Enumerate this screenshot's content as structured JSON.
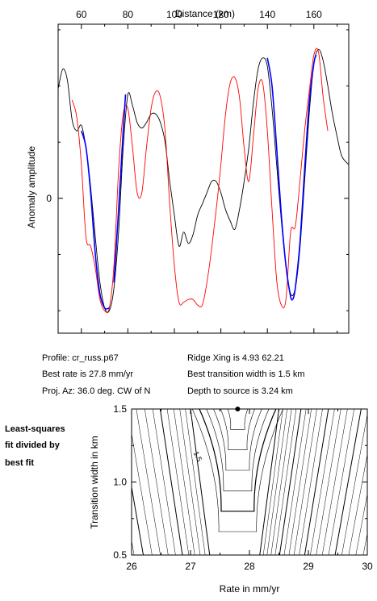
{
  "chart_data": [
    {
      "type": "line",
      "title": "",
      "xlabel": "Distance (km)",
      "ylabel": "Anomaly amplitude",
      "xlim": [
        50,
        175
      ],
      "ylim": [
        -2.4,
        3.1
      ],
      "x_ticks": [
        60,
        80,
        100,
        120,
        140,
        160
      ],
      "y_ticks": [
        {
          "value": 0,
          "label": "0"
        }
      ],
      "x_axis_position": "top",
      "grid": false,
      "series": [
        {
          "role": "observed profile",
          "color": "#000000",
          "points": [
            [
              50,
              1.95
            ],
            [
              52,
              2.3
            ],
            [
              54,
              2.1
            ],
            [
              56,
              1.4
            ],
            [
              58,
              1.2
            ],
            [
              60,
              1.3
            ],
            [
              62,
              0.9
            ],
            [
              64,
              0.2
            ],
            [
              66,
              -0.7
            ],
            [
              68,
              -1.5
            ],
            [
              70,
              -1.95
            ],
            [
              72,
              -2.0
            ],
            [
              74,
              -1.6
            ],
            [
              76,
              -0.6
            ],
            [
              78,
              0.9
            ],
            [
              80,
              1.85
            ],
            [
              82,
              1.65
            ],
            [
              84,
              1.35
            ],
            [
              86,
              1.25
            ],
            [
              88,
              1.35
            ],
            [
              90,
              1.5
            ],
            [
              92,
              1.5
            ],
            [
              94,
              1.35
            ],
            [
              96,
              1.0
            ],
            [
              98,
              0.3
            ],
            [
              100,
              -0.3
            ],
            [
              102,
              -0.85
            ],
            [
              104,
              -0.6
            ],
            [
              106,
              -0.8
            ],
            [
              108,
              -0.65
            ],
            [
              110,
              -0.3
            ],
            [
              112,
              -0.1
            ],
            [
              114,
              0.1
            ],
            [
              116,
              0.3
            ],
            [
              118,
              0.3
            ],
            [
              120,
              0.1
            ],
            [
              122,
              -0.2
            ],
            [
              124,
              -0.4
            ],
            [
              126,
              -0.55
            ],
            [
              128,
              -0.2
            ],
            [
              130,
              0.3
            ],
            [
              132,
              0.9
            ],
            [
              134,
              1.7
            ],
            [
              136,
              2.3
            ],
            [
              138,
              2.5
            ],
            [
              140,
              2.35
            ],
            [
              142,
              1.6
            ],
            [
              144,
              0.6
            ],
            [
              146,
              -0.4
            ],
            [
              148,
              -1.2
            ],
            [
              150,
              -1.7
            ],
            [
              152,
              -1.6
            ],
            [
              154,
              -0.9
            ],
            [
              156,
              0.3
            ],
            [
              158,
              1.5
            ],
            [
              160,
              2.4
            ],
            [
              162,
              2.65
            ],
            [
              164,
              2.45
            ],
            [
              166,
              2.0
            ],
            [
              168,
              1.5
            ],
            [
              170,
              1.1
            ],
            [
              172,
              0.75
            ],
            [
              175,
              0.6
            ]
          ]
        },
        {
          "role": "model synthetic",
          "color": "#ff0000",
          "points": [
            [
              56,
              1.75
            ],
            [
              58,
              1.45
            ],
            [
              60,
              0.6
            ],
            [
              62,
              -0.7
            ],
            [
              64,
              -0.85
            ],
            [
              66,
              -1.25
            ],
            [
              68,
              -1.8
            ],
            [
              70,
              -2.0
            ],
            [
              72,
              -1.95
            ],
            [
              74,
              -1.2
            ],
            [
              76,
              0.5
            ],
            [
              78,
              1.5
            ],
            [
              80,
              1.6
            ],
            [
              82,
              0.9
            ],
            [
              84,
              0.1
            ],
            [
              86,
              0.1
            ],
            [
              88,
              0.9
            ],
            [
              90,
              1.6
            ],
            [
              92,
              1.9
            ],
            [
              94,
              1.8
            ],
            [
              96,
              1.2
            ],
            [
              98,
              -0.1
            ],
            [
              100,
              -1.2
            ],
            [
              102,
              -1.85
            ],
            [
              104,
              -1.85
            ],
            [
              106,
              -1.8
            ],
            [
              108,
              -1.8
            ],
            [
              110,
              -1.9
            ],
            [
              112,
              -1.9
            ],
            [
              114,
              -1.5
            ],
            [
              116,
              -0.9
            ],
            [
              118,
              -0.2
            ],
            [
              120,
              0.6
            ],
            [
              122,
              1.5
            ],
            [
              124,
              2.05
            ],
            [
              126,
              2.15
            ],
            [
              128,
              1.8
            ],
            [
              130,
              0.9
            ],
            [
              132,
              0.3
            ],
            [
              134,
              1.1
            ],
            [
              136,
              1.95
            ],
            [
              138,
              2.05
            ],
            [
              140,
              1.2
            ],
            [
              142,
              -0.2
            ],
            [
              144,
              -1.45
            ],
            [
              146,
              -1.9
            ],
            [
              148,
              -1.8
            ],
            [
              150,
              -0.6
            ],
            [
              152,
              -0.5
            ],
            [
              154,
              0.3
            ],
            [
              156,
              1.2
            ],
            [
              158,
              1.9
            ],
            [
              160,
              2.55
            ],
            [
              162,
              2.6
            ],
            [
              164,
              1.8
            ],
            [
              166,
              1.2
            ]
          ]
        },
        {
          "role": "fit segments",
          "color": "#0000ff",
          "points": [
            [
              64,
              1.2
            ],
            [
              66,
              0.9
            ],
            [
              68,
              0.1
            ],
            [
              70,
              -0.9
            ],
            [
              72,
              -1.6
            ],
            [
              74,
              -1.95
            ],
            [
              76,
              -1.9
            ]
          ],
          "segments": [
            [
              [
                60,
                1.2
              ],
              [
                62,
                0.9
              ],
              [
                64,
                0.1
              ],
              [
                66,
                -1.0
              ],
              [
                68,
                -1.7
              ],
              [
                70,
                -1.95
              ],
              [
                72,
                -1.95
              ]
            ],
            [
              [
                74,
                -1.5
              ],
              [
                76,
                -0.2
              ],
              [
                78,
                1.2
              ],
              [
                79,
                1.85
              ]
            ],
            [
              [
                140,
                2.5
              ],
              [
                142,
                2.0
              ],
              [
                144,
                0.9
              ],
              [
                146,
                -0.3
              ],
              [
                148,
                -1.2
              ],
              [
                150,
                -1.75
              ],
              [
                151,
                -1.8
              ]
            ],
            [
              [
                151,
                -1.8
              ],
              [
                152,
                -1.6
              ],
              [
                154,
                -0.8
              ],
              [
                156,
                0.5
              ],
              [
                158,
                1.7
              ],
              [
                160,
                2.4
              ],
              [
                161,
                2.55
              ]
            ]
          ]
        }
      ]
    },
    {
      "type": "contour",
      "title": "",
      "xlabel": "Rate in mm/yr",
      "ylabel": "Transition width in km",
      "xlim": [
        26,
        30
      ],
      "ylim": [
        0.5,
        1.5
      ],
      "x_ticks": [
        26,
        27,
        28,
        29,
        30
      ],
      "y_ticks": [
        0.5,
        1.0,
        1.5
      ],
      "grid": false,
      "best_fit_point": {
        "x": 27.8,
        "y": 1.5
      },
      "contour_labels": [
        {
          "text": "1.5",
          "x": 27.05,
          "y": 1.2
        }
      ]
    }
  ],
  "info": {
    "profile": "Profile: cr_russ.p67",
    "best_rate": "Best rate is 27.8 mm/yr",
    "proj_az": "Proj. Az: 36.0 deg. CW of N",
    "ridge_xing": "Ridge Xing is 4.93 62.21",
    "best_width": "Best transition width is 1.5 km",
    "depth": "Depth to source is   3.24 km"
  },
  "side_note": [
    "Least-squares",
    "fit divided by",
    "best fit"
  ]
}
